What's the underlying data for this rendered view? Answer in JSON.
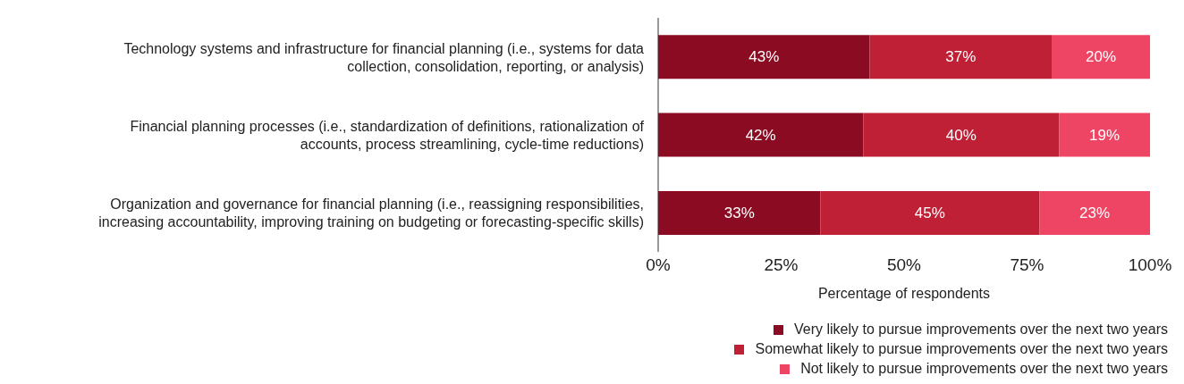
{
  "chart_data": {
    "type": "bar",
    "orientation": "horizontal",
    "stacked": true,
    "categories": [
      "Technology systems and infrastructure for financial planning (i.e., systems for data collection, consolidation, reporting, or analysis)",
      "Financial planning processes (i.e., standardization of definitions, rationalization of accounts, process streamlining, cycle-time reductions)",
      "Organization and governance for financial planning (i.e., reassigning responsibilities, increasing accountability, improving training on budgeting or forecasting-specific skills)"
    ],
    "series": [
      {
        "name": "Very likely to pursue improvements over the next two years",
        "color": "#8b0c22",
        "values": [
          43,
          41.7,
          33
        ],
        "value_labels": [
          "43%",
          "42%",
          "33%"
        ]
      },
      {
        "name": "Somewhat likely to pursue improvements over the next two years",
        "color": "#bf2036",
        "values": [
          37,
          39.8,
          44.5
        ],
        "value_labels": [
          "37%",
          "40%",
          "45%"
        ]
      },
      {
        "name": "Not likely to pursue improvements over the next two years",
        "color": "#ef4565",
        "values": [
          20,
          18.5,
          22.5
        ],
        "value_labels": [
          "20%",
          "19%",
          "23%"
        ]
      }
    ],
    "xlim": [
      0,
      100
    ],
    "xticks": [
      {
        "value": 0,
        "label": "0%"
      },
      {
        "value": 25,
        "label": "25%"
      },
      {
        "value": 50,
        "label": "50%"
      },
      {
        "value": 75,
        "label": "75%"
      },
      {
        "value": 100,
        "label": "100%"
      }
    ],
    "xlabel": "Percentage of respondents",
    "legend": "bottom right",
    "grid": false,
    "marker": "square"
  }
}
